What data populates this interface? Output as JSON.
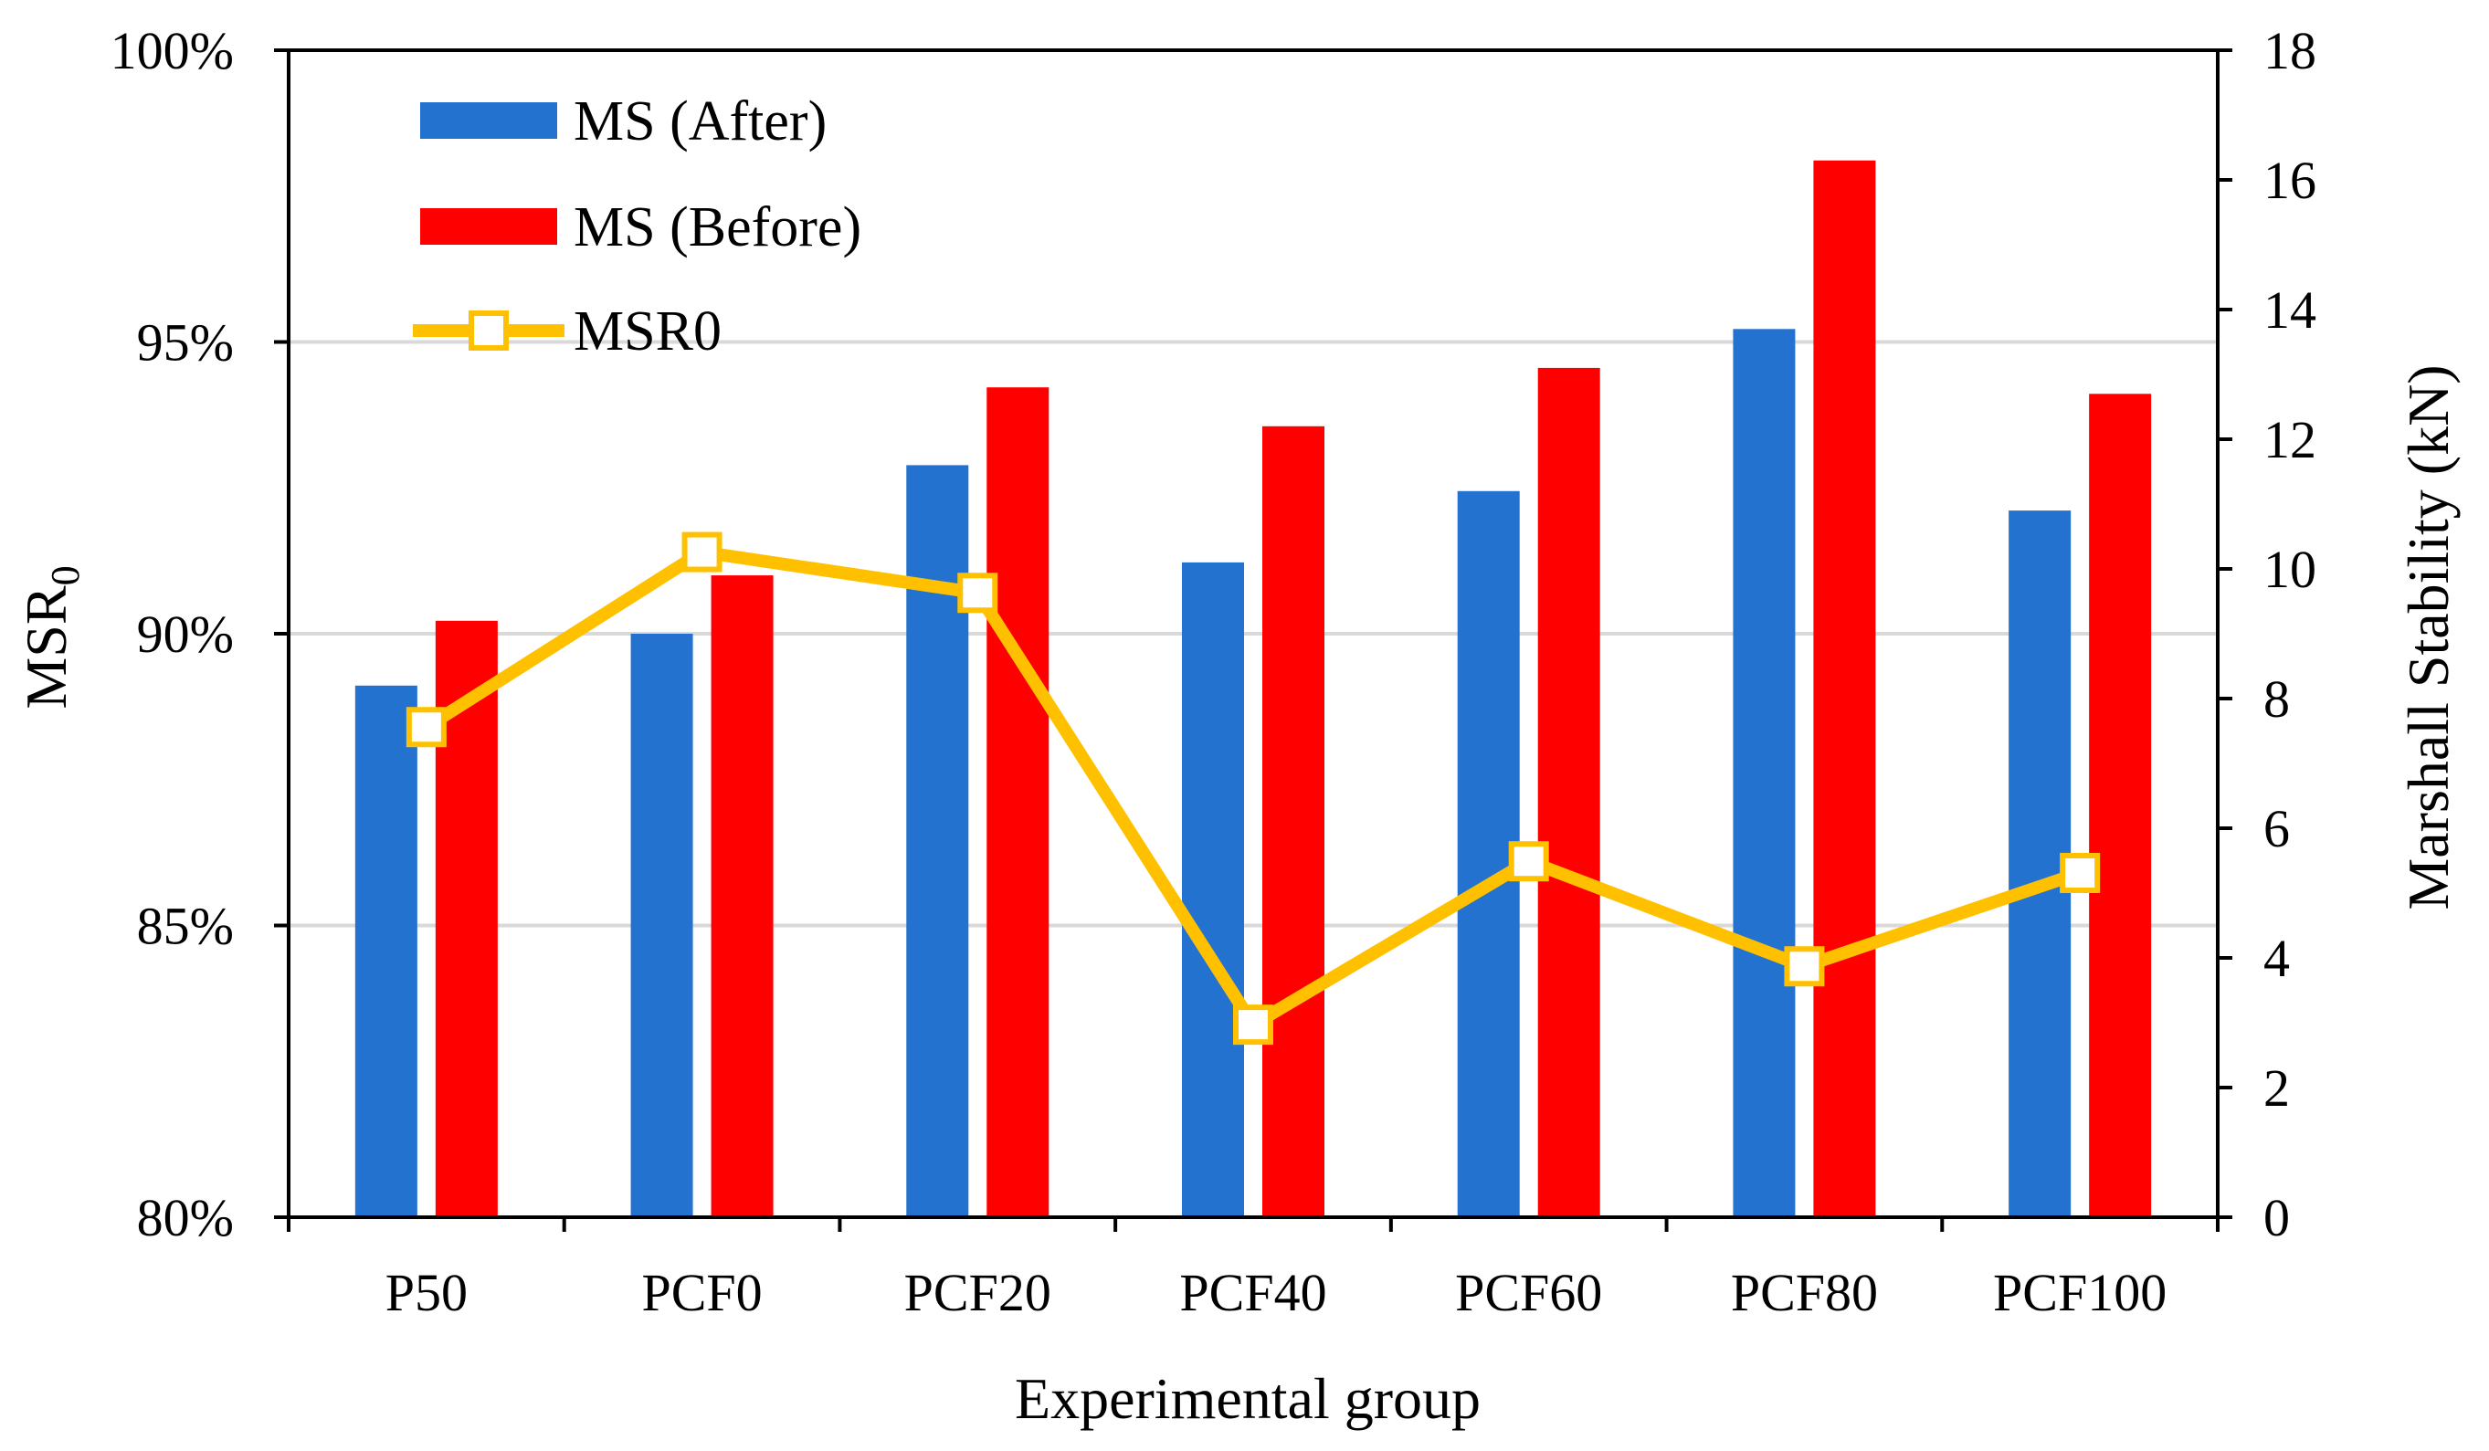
{
  "chart_data": {
    "type": "bar",
    "title": "",
    "xlabel": "Experimental group",
    "ylabel_left_main": "MSR",
    "ylabel_left_sub": "0",
    "ylabel_right": "Marshall Stability (kN)",
    "categories": [
      "P50",
      "PCF0",
      "PCF20",
      "PCF40",
      "PCF60",
      "PCF80",
      "PCF100"
    ],
    "left_axis": {
      "range": [
        80,
        100
      ],
      "ticks": [
        80,
        85,
        90,
        95,
        100
      ],
      "tick_labels": [
        "80%",
        "85%",
        "90%",
        "95%",
        "100%"
      ]
    },
    "right_axis": {
      "range": [
        0,
        18
      ],
      "ticks": [
        0,
        2,
        4,
        6,
        8,
        10,
        12,
        14,
        16,
        18
      ],
      "tick_labels": [
        "0",
        "2",
        "4",
        "6",
        "8",
        "10",
        "12",
        "14",
        "16",
        "18"
      ]
    },
    "grid": true,
    "legend_position": "top-left",
    "series": [
      {
        "name": "MS (After)",
        "type": "bar",
        "axis": "right",
        "color": "#2472D0",
        "values": [
          8.2,
          9.0,
          11.6,
          10.1,
          11.2,
          13.7,
          10.9
        ]
      },
      {
        "name": "MS (Before)",
        "type": "bar",
        "axis": "right",
        "color": "#FF0000",
        "values": [
          9.2,
          9.9,
          12.8,
          12.2,
          13.1,
          16.3,
          12.7
        ]
      },
      {
        "name": "MSR0",
        "type": "line",
        "axis": "left",
        "color": "#FFC000",
        "values": [
          88.4,
          91.4,
          90.7,
          83.3,
          86.1,
          84.3,
          85.9
        ]
      }
    ]
  }
}
